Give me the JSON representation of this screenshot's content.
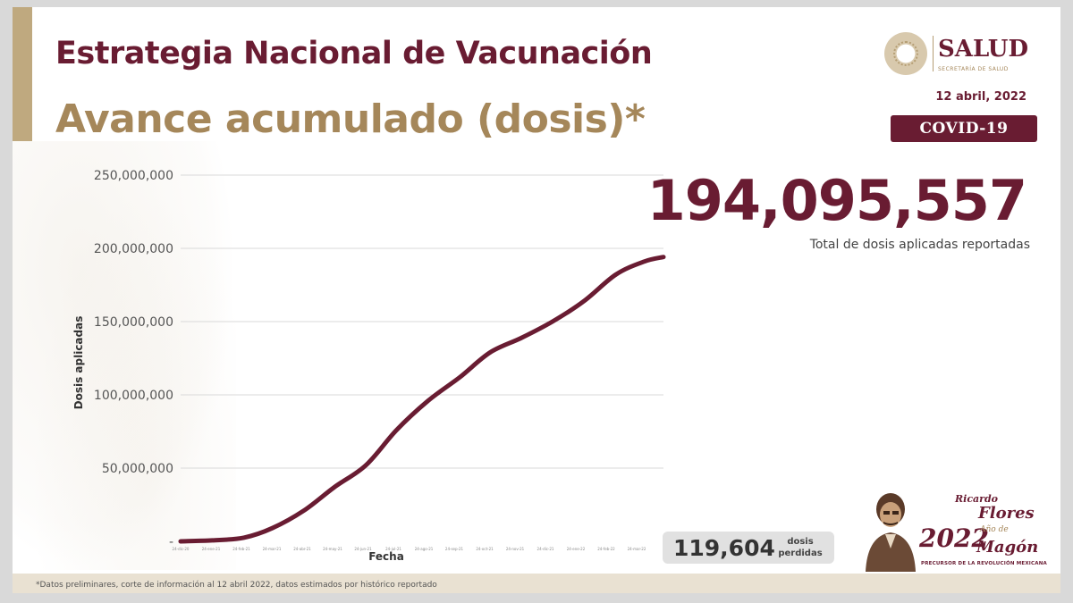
{
  "header": {
    "title": "Estrategia Nacional de Vacunación",
    "subtitle": "Avance acumulado (dosis)*"
  },
  "logo": {
    "name": "SALUD",
    "subtitle": "SECRETARÍA DE SALUD"
  },
  "date": "12 abril, 2022",
  "badge": "COVID-19",
  "summary": {
    "total": "194,095,557",
    "caption": "Total de dosis aplicadas reportadas",
    "lost_number": "119,604",
    "lost_label": "dosis perdidas"
  },
  "commemoration": {
    "year": "2022",
    "first_name": "Ricardo",
    "surname_1": "Flores",
    "anio": "Año de",
    "surname_2": "Magón",
    "tagline": "PRECURSOR DE LA REVOLUCIÓN MEXICANA"
  },
  "footnote": "*Datos preliminares, corte de información al 12 abril 2022, datos estimados por histórico reportado",
  "colors": {
    "primary": "#691c32",
    "gold": "#a5875a",
    "line": "#691c32"
  },
  "chart_data": {
    "type": "line",
    "title": "",
    "xlabel": "Fecha",
    "ylabel": "Dosis aplicadas",
    "ylim": [
      0,
      250000000
    ],
    "yticks": [
      0,
      50000000,
      100000000,
      150000000,
      200000000,
      250000000
    ],
    "ytick_labels": [
      "-",
      "50,000,000",
      "100,000,000",
      "150,000,000",
      "200,000,000",
      "250,000,000"
    ],
    "xtick_labels": [
      "24-dic-20",
      "24-ene-21",
      "24-feb-21",
      "24-mar-21",
      "24-abr-21",
      "24-may-21",
      "24-jun-21",
      "24-jul-21",
      "24-ago-21",
      "24-sep-21",
      "24-oct-21",
      "24-nov-21",
      "24-dic-21",
      "24-ene-22",
      "24-feb-22",
      "24-mar-22"
    ],
    "grid": true,
    "legend": "none",
    "series": [
      {
        "x": [
          "2020-12-24",
          "2021-01-24",
          "2021-02-24",
          "2021-03-24",
          "2021-04-24",
          "2021-05-24",
          "2021-06-24",
          "2021-07-24",
          "2021-08-24",
          "2021-09-24",
          "2021-10-24",
          "2021-11-24",
          "2021-12-24",
          "2022-01-24",
          "2022-02-24",
          "2022-03-24",
          "2022-04-12"
        ],
        "y": [
          0,
          700000,
          2500000,
          9000000,
          21000000,
          37000000,
          52000000,
          76000000,
          96000000,
          112000000,
          129000000,
          139000000,
          150000000,
          164000000,
          182000000,
          191000000,
          194095557
        ]
      }
    ]
  }
}
